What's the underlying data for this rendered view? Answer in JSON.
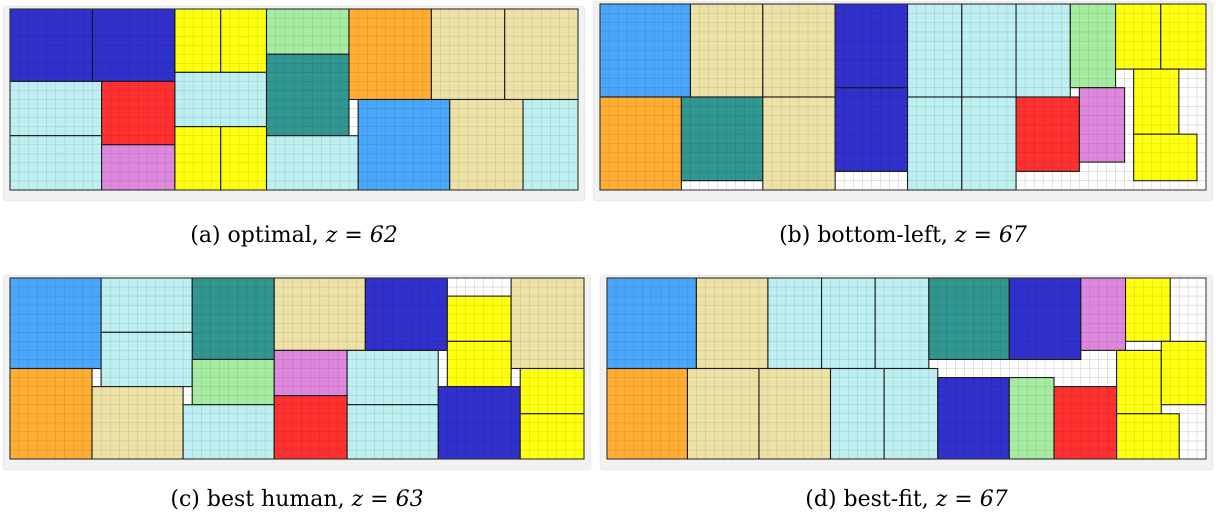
{
  "palette": {
    "navy": "#3030cc",
    "yellow": "#ffff10",
    "green": "#a6eca0",
    "orange": "#ffad33",
    "tan": "#ede2a6",
    "cyan": "#bdeef0",
    "red": "#ff3030",
    "teal": "#319690",
    "blue": "#49a6fb",
    "pink": "#dd88dd",
    "grid": "#cfcfcf",
    "frame_bg": "#f1f1f1"
  },
  "panels": [
    {
      "id": "a",
      "caption_prefix": "(a) optimal, ",
      "caption_z": "z = 62",
      "grid_extent": [
        62,
        20
      ],
      "rects": [
        {
          "c": "navy",
          "x": 0,
          "y": 0,
          "w": 9,
          "h": 8
        },
        {
          "c": "navy",
          "x": 9,
          "y": 0,
          "w": 9,
          "h": 8
        },
        {
          "c": "yellow",
          "x": 18,
          "y": 0,
          "w": 5,
          "h": 7
        },
        {
          "c": "yellow",
          "x": 23,
          "y": 0,
          "w": 5,
          "h": 7
        },
        {
          "c": "green",
          "x": 28,
          "y": 0,
          "w": 9,
          "h": 5
        },
        {
          "c": "orange",
          "x": 37,
          "y": 0,
          "w": 9,
          "h": 10
        },
        {
          "c": "tan",
          "x": 46,
          "y": 0,
          "w": 8,
          "h": 10
        },
        {
          "c": "tan",
          "x": 54,
          "y": 0,
          "w": 8,
          "h": 10
        },
        {
          "c": "cyan",
          "x": 0,
          "y": 8,
          "w": 10,
          "h": 6
        },
        {
          "c": "red",
          "x": 10,
          "y": 8,
          "w": 8,
          "h": 7
        },
        {
          "c": "cyan",
          "x": 18,
          "y": 7,
          "w": 10,
          "h": 6
        },
        {
          "c": "teal",
          "x": 28,
          "y": 5,
          "w": 9,
          "h": 9
        },
        {
          "c": "blue",
          "x": 38,
          "y": 10,
          "w": 10,
          "h": 10
        },
        {
          "c": "tan",
          "x": 48,
          "y": 10,
          "w": 8,
          "h": 10
        },
        {
          "c": "cyan",
          "x": 56,
          "y": 10,
          "w": 6,
          "h": 10
        },
        {
          "c": "cyan",
          "x": 0,
          "y": 14,
          "w": 10,
          "h": 6
        },
        {
          "c": "pink",
          "x": 10,
          "y": 15,
          "w": 8,
          "h": 5
        },
        {
          "c": "yellow",
          "x": 18,
          "y": 13,
          "w": 5,
          "h": 7
        },
        {
          "c": "yellow",
          "x": 23,
          "y": 13,
          "w": 5,
          "h": 7
        },
        {
          "c": "cyan",
          "x": 28,
          "y": 14,
          "w": 10,
          "h": 6
        }
      ]
    },
    {
      "id": "b",
      "caption_prefix": "(b) bottom-left, ",
      "caption_z": "z = 67",
      "grid_extent": [
        67,
        20
      ],
      "rects": [
        {
          "c": "blue",
          "x": 0,
          "y": 0,
          "w": 10,
          "h": 10
        },
        {
          "c": "tan",
          "x": 10,
          "y": 0,
          "w": 8,
          "h": 10
        },
        {
          "c": "tan",
          "x": 18,
          "y": 0,
          "w": 8,
          "h": 10
        },
        {
          "c": "navy",
          "x": 26,
          "y": 0,
          "w": 8,
          "h": 9
        },
        {
          "c": "cyan",
          "x": 34,
          "y": 0,
          "w": 6,
          "h": 10
        },
        {
          "c": "cyan",
          "x": 40,
          "y": 0,
          "w": 6,
          "h": 10
        },
        {
          "c": "cyan",
          "x": 46,
          "y": 0,
          "w": 6,
          "h": 10
        },
        {
          "c": "green",
          "x": 52,
          "y": 0,
          "w": 5,
          "h": 9
        },
        {
          "c": "yellow",
          "x": 57,
          "y": 0,
          "w": 5,
          "h": 7
        },
        {
          "c": "yellow",
          "x": 62,
          "y": 0,
          "w": 5,
          "h": 7
        },
        {
          "c": "orange",
          "x": 0,
          "y": 10,
          "w": 9,
          "h": 10
        },
        {
          "c": "teal",
          "x": 9,
          "y": 10,
          "w": 9,
          "h": 9
        },
        {
          "c": "tan",
          "x": 18,
          "y": 10,
          "w": 8,
          "h": 10
        },
        {
          "c": "navy",
          "x": 26,
          "y": 9,
          "w": 8,
          "h": 9
        },
        {
          "c": "cyan",
          "x": 34,
          "y": 10,
          "w": 6,
          "h": 10
        },
        {
          "c": "cyan",
          "x": 40,
          "y": 10,
          "w": 6,
          "h": 10
        },
        {
          "c": "red",
          "x": 46,
          "y": 10,
          "w": 7,
          "h": 8
        },
        {
          "c": "pink",
          "x": 53,
          "y": 9,
          "w": 5,
          "h": 8
        },
        {
          "c": "yellow",
          "x": 59,
          "y": 7,
          "w": 5,
          "h": 7
        },
        {
          "c": "yellow",
          "x": 59,
          "y": 14,
          "w": 7,
          "h": 5
        }
      ]
    },
    {
      "id": "c",
      "caption_prefix": "(c) best human, ",
      "caption_z": "z = 63",
      "grid_extent": [
        63,
        20
      ],
      "rects": [
        {
          "c": "blue",
          "x": 0,
          "y": 0,
          "w": 10,
          "h": 10
        },
        {
          "c": "cyan",
          "x": 10,
          "y": 0,
          "w": 10,
          "h": 6
        },
        {
          "c": "teal",
          "x": 20,
          "y": 0,
          "w": 9,
          "h": 9
        },
        {
          "c": "tan",
          "x": 29,
          "y": 0,
          "w": 10,
          "h": 8
        },
        {
          "c": "navy",
          "x": 39,
          "y": 0,
          "w": 9,
          "h": 8
        },
        {
          "c": "yellow",
          "x": 48,
          "y": 2,
          "w": 7,
          "h": 5
        },
        {
          "c": "tan",
          "x": 55,
          "y": 0,
          "w": 8,
          "h": 10
        },
        {
          "c": "cyan",
          "x": 10,
          "y": 6,
          "w": 10,
          "h": 6
        },
        {
          "c": "green",
          "x": 20,
          "y": 9,
          "w": 9,
          "h": 5
        },
        {
          "c": "pink",
          "x": 29,
          "y": 8,
          "w": 8,
          "h": 5
        },
        {
          "c": "cyan",
          "x": 37,
          "y": 8,
          "w": 10,
          "h": 6
        },
        {
          "c": "yellow",
          "x": 48,
          "y": 7,
          "w": 7,
          "h": 5
        },
        {
          "c": "orange",
          "x": 0,
          "y": 10,
          "w": 9,
          "h": 10
        },
        {
          "c": "tan",
          "x": 9,
          "y": 12,
          "w": 10,
          "h": 8
        },
        {
          "c": "cyan",
          "x": 19,
          "y": 14,
          "w": 10,
          "h": 6
        },
        {
          "c": "red",
          "x": 29,
          "y": 13,
          "w": 8,
          "h": 7
        },
        {
          "c": "cyan",
          "x": 37,
          "y": 14,
          "w": 10,
          "h": 6
        },
        {
          "c": "navy",
          "x": 47,
          "y": 12,
          "w": 9,
          "h": 8
        },
        {
          "c": "yellow",
          "x": 56,
          "y": 10,
          "w": 7,
          "h": 5
        },
        {
          "c": "yellow",
          "x": 56,
          "y": 15,
          "w": 7,
          "h": 5
        }
      ]
    },
    {
      "id": "d",
      "caption_prefix": "(d) best-fit, ",
      "caption_z": "z = 67",
      "grid_extent": [
        67,
        20
      ],
      "rects": [
        {
          "c": "blue",
          "x": 0,
          "y": 0,
          "w": 10,
          "h": 10
        },
        {
          "c": "tan",
          "x": 10,
          "y": 0,
          "w": 8,
          "h": 10
        },
        {
          "c": "cyan",
          "x": 18,
          "y": 0,
          "w": 6,
          "h": 10
        },
        {
          "c": "cyan",
          "x": 24,
          "y": 0,
          "w": 6,
          "h": 10
        },
        {
          "c": "cyan",
          "x": 30,
          "y": 0,
          "w": 6,
          "h": 10
        },
        {
          "c": "teal",
          "x": 36,
          "y": 0,
          "w": 9,
          "h": 9
        },
        {
          "c": "navy",
          "x": 45,
          "y": 0,
          "w": 8,
          "h": 9
        },
        {
          "c": "pink",
          "x": 53,
          "y": 0,
          "w": 5,
          "h": 8
        },
        {
          "c": "yellow",
          "x": 58,
          "y": 0,
          "w": 5,
          "h": 7
        },
        {
          "c": "orange",
          "x": 0,
          "y": 10,
          "w": 9,
          "h": 10
        },
        {
          "c": "tan",
          "x": 9,
          "y": 10,
          "w": 8,
          "h": 10
        },
        {
          "c": "tan",
          "x": 17,
          "y": 10,
          "w": 8,
          "h": 10
        },
        {
          "c": "cyan",
          "x": 25,
          "y": 10,
          "w": 6,
          "h": 10
        },
        {
          "c": "cyan",
          "x": 31,
          "y": 10,
          "w": 6,
          "h": 10
        },
        {
          "c": "navy",
          "x": 37,
          "y": 11,
          "w": 8,
          "h": 9
        },
        {
          "c": "green",
          "x": 45,
          "y": 11,
          "w": 5,
          "h": 9
        },
        {
          "c": "red",
          "x": 50,
          "y": 12,
          "w": 7,
          "h": 8
        },
        {
          "c": "yellow",
          "x": 57,
          "y": 8,
          "w": 5,
          "h": 7
        },
        {
          "c": "yellow",
          "x": 62,
          "y": 7,
          "w": 5,
          "h": 7
        },
        {
          "c": "yellow",
          "x": 57,
          "y": 15,
          "w": 7,
          "h": 5
        }
      ]
    }
  ]
}
